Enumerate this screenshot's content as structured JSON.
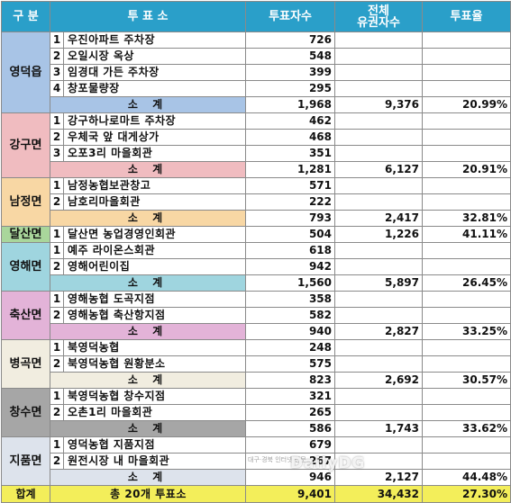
{
  "headers": {
    "region": "구 분",
    "place": "투 표 소",
    "votes": "투표자수",
    "eligible_line1": "전체",
    "eligible_line2": "유권자수",
    "rate": "투표율"
  },
  "regions": [
    {
      "name": "영덕읍",
      "color": "#a8c4e6",
      "stations": [
        {
          "no": "1",
          "name": "우진아파트 주차장",
          "votes": "726"
        },
        {
          "no": "2",
          "name": "오일시장 옥상",
          "votes": "548"
        },
        {
          "no": "3",
          "name": "임경대 가든 주차장",
          "votes": "399"
        },
        {
          "no": "4",
          "name": "창포물량장",
          "votes": "295"
        }
      ],
      "subtotal": {
        "label": "소 계",
        "votes": "1,968",
        "eligible": "9,376",
        "rate": "20.99%"
      }
    },
    {
      "name": "강구면",
      "color": "#f0bcc0",
      "stations": [
        {
          "no": "1",
          "name": "강구하나로마트 주차장",
          "votes": "462"
        },
        {
          "no": "2",
          "name": "우체국 앞 대게상가",
          "votes": "468"
        },
        {
          "no": "3",
          "name": "오포3리 마을회관",
          "votes": "351"
        }
      ],
      "subtotal": {
        "label": "소 계",
        "votes": "1,281",
        "eligible": "6,127",
        "rate": "20.91%"
      }
    },
    {
      "name": "남정면",
      "color": "#f8d7a4",
      "stations": [
        {
          "no": "1",
          "name": "남정농협보관창고",
          "votes": "571"
        },
        {
          "no": "2",
          "name": "남호리마을회관",
          "votes": "222"
        }
      ],
      "subtotal": {
        "label": "소 계",
        "votes": "793",
        "eligible": "2,417",
        "rate": "32.81%"
      }
    },
    {
      "name": "달산면",
      "color": "#a9d69b",
      "stations": [
        {
          "no": "1",
          "name": "달산면 농업경영인회관",
          "votes": "504",
          "eligible": "1,226",
          "rate": "41.11%"
        }
      ],
      "subtotal": null
    },
    {
      "name": "영해면",
      "color": "#9fd5df",
      "stations": [
        {
          "no": "1",
          "name": "예주 라이온스회관",
          "votes": "618"
        },
        {
          "no": "2",
          "name": "영해어린이집",
          "votes": "942"
        }
      ],
      "subtotal": {
        "label": "소 계",
        "votes": "1,560",
        "eligible": "5,897",
        "rate": "26.45%"
      }
    },
    {
      "name": "축산면",
      "color": "#e3b3d8",
      "stations": [
        {
          "no": "1",
          "name": "영해농협 도곡지점",
          "votes": "358"
        },
        {
          "no": "2",
          "name": "영해농협 축산항지점",
          "votes": "582"
        }
      ],
      "subtotal": {
        "label": "소 계",
        "votes": "940",
        "eligible": "2,827",
        "rate": "33.25%"
      }
    },
    {
      "name": "병곡면",
      "color": "#f1ede0",
      "stations": [
        {
          "no": "1",
          "name": "북영덕농협",
          "votes": "248"
        },
        {
          "no": "2",
          "name": "북영덕농협 원황분소",
          "votes": "575"
        }
      ],
      "subtotal": {
        "label": "소 계",
        "votes": "823",
        "eligible": "2,692",
        "rate": "30.57%"
      }
    },
    {
      "name": "창수면",
      "color": "#a6a6a6",
      "stations": [
        {
          "no": "1",
          "name": "북영덕농협 창수지점",
          "votes": "321"
        },
        {
          "no": "2",
          "name": "오촌1리 마을회관",
          "votes": "265"
        }
      ],
      "subtotal": {
        "label": "소 계",
        "votes": "586",
        "eligible": "1,743",
        "rate": "33.62%"
      }
    },
    {
      "name": "지품면",
      "color": "#dde3ec",
      "stations": [
        {
          "no": "1",
          "name": "영덕농협 지품지점",
          "votes": "679"
        },
        {
          "no": "2",
          "name": "원전시장 내 마을회관",
          "votes": "267"
        }
      ],
      "subtotal": {
        "label": "소 계",
        "votes": "946",
        "eligible": "2,127",
        "rate": "44.48%"
      }
    }
  ],
  "total": {
    "label": "합계",
    "place": "총 20개 투표소",
    "votes": "9,401",
    "eligible": "34,432",
    "rate": "27.30%"
  },
  "watermark": "DailyDG"
}
